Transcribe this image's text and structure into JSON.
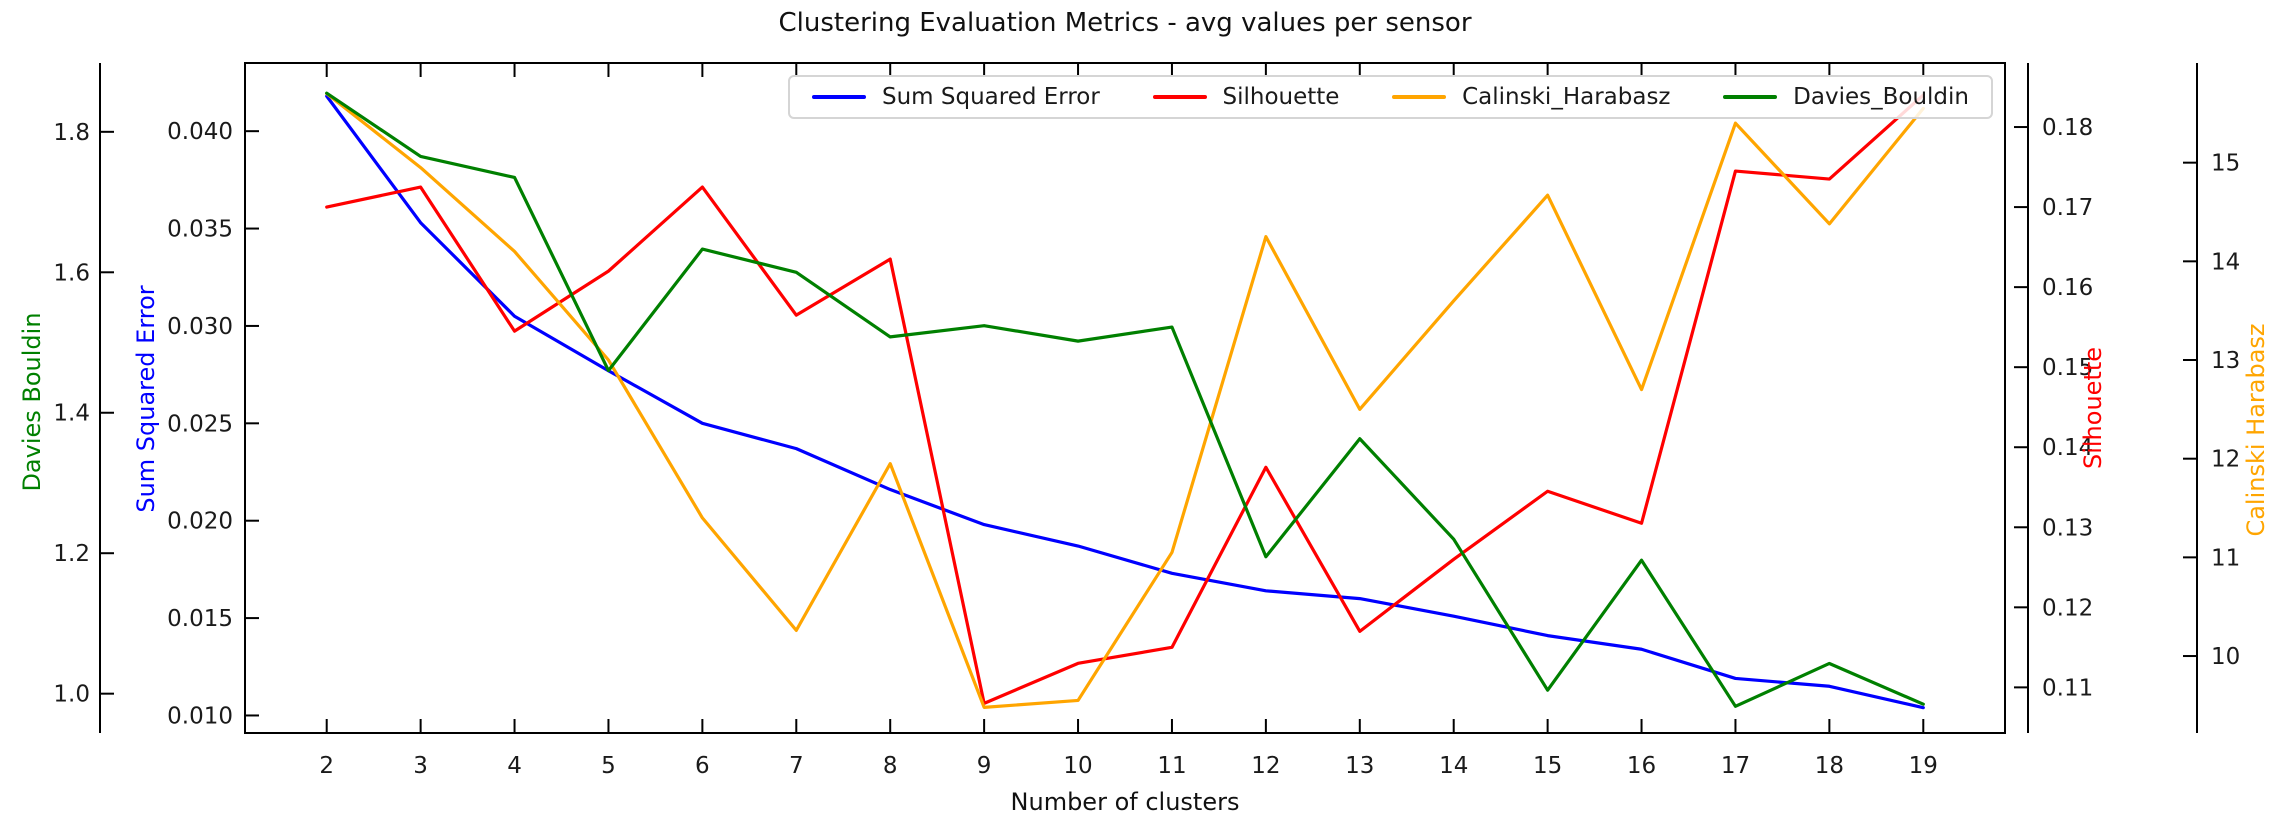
{
  "title": "Clustering Evaluation Metrics - avg values per sensor",
  "xlabel": "Number of clusters",
  "axes": {
    "x": {
      "label": "Number of clusters",
      "tick_labels": [
        "2",
        "3",
        "4",
        "5",
        "6",
        "7",
        "8",
        "9",
        "10",
        "11",
        "12",
        "13",
        "14",
        "15",
        "16",
        "17",
        "18",
        "19"
      ],
      "tick_values": [
        2,
        3,
        4,
        5,
        6,
        7,
        8,
        9,
        10,
        11,
        12,
        13,
        14,
        15,
        16,
        17,
        18,
        19
      ],
      "lim": [
        1.13,
        19.87
      ]
    },
    "davies": {
      "label": "Davies Bouldin",
      "color": "#008000",
      "side": "outer-left",
      "tick_labels": [
        "1.0",
        "1.2",
        "1.4",
        "1.6",
        "1.8"
      ],
      "tick_values": [
        1.0,
        1.2,
        1.4,
        1.6,
        1.8
      ],
      "lim": [
        0.944,
        1.898
      ]
    },
    "sse": {
      "label": "Sum Squared Error",
      "color": "#0000ff",
      "side": "left",
      "tick_labels": [
        "0.010",
        "0.015",
        "0.020",
        "0.025",
        "0.030",
        "0.035",
        "0.040"
      ],
      "tick_values": [
        0.01,
        0.015,
        0.02,
        0.025,
        0.03,
        0.035,
        0.04
      ],
      "lim": [
        0.0091,
        0.0435
      ]
    },
    "silhouette": {
      "label": "Silhouette",
      "color": "#ff0000",
      "side": "right",
      "tick_labels": [
        "0.11",
        "0.12",
        "0.13",
        "0.14",
        "0.15",
        "0.16",
        "0.17",
        "0.18"
      ],
      "tick_values": [
        0.11,
        0.12,
        0.13,
        0.14,
        0.15,
        0.16,
        0.17,
        0.18
      ],
      "lim": [
        0.1043,
        0.188
      ]
    },
    "calinski": {
      "label": "Calinski Harabasz",
      "color": "#ffa500",
      "side": "outer-right",
      "tick_labels": [
        "10",
        "11",
        "12",
        "13",
        "14",
        "15"
      ],
      "tick_values": [
        10,
        11,
        12,
        13,
        14,
        15
      ],
      "lim": [
        9.22,
        16.01
      ]
    }
  },
  "legend": {
    "items": [
      "Sum Squared Error",
      "Silhouette",
      "Calinski_Harabasz",
      "Davies_Bouldin"
    ]
  },
  "chart_data": {
    "type": "line",
    "title": "Clustering Evaluation Metrics - avg values per sensor",
    "xlabel": "Number of clusters",
    "grid": false,
    "legend_position": "upper center",
    "x": [
      2,
      3,
      4,
      5,
      6,
      7,
      8,
      9,
      10,
      11,
      12,
      13,
      14,
      15,
      16,
      17,
      18,
      19
    ],
    "series": [
      {
        "name": "Sum Squared Error",
        "color": "#0000ff",
        "axis": "sse",
        "values": [
          0.0418,
          0.0353,
          0.0305,
          0.0277,
          0.025,
          0.0237,
          0.0216,
          0.0198,
          0.0187,
          0.0173,
          0.0164,
          0.016,
          0.0151,
          0.0141,
          0.0134,
          0.0119,
          0.0115,
          0.0104
        ]
      },
      {
        "name": "Silhouette",
        "color": "#ff0000",
        "axis": "silhouette",
        "values": [
          0.17,
          0.1725,
          0.1545,
          0.162,
          0.1725,
          0.1565,
          0.1635,
          0.108,
          0.113,
          0.115,
          0.1375,
          0.117,
          0.126,
          0.1345,
          0.1305,
          0.1745,
          0.1735,
          0.184
        ]
      },
      {
        "name": "Calinski_Harabasz",
        "color": "#ffa500",
        "axis": "calinski",
        "values": [
          15.7,
          14.95,
          14.1,
          13.0,
          11.4,
          10.26,
          11.95,
          9.48,
          9.55,
          11.05,
          14.25,
          12.5,
          13.6,
          14.67,
          12.7,
          15.4,
          14.38,
          15.55
        ]
      },
      {
        "name": "Davies_Bouldin",
        "color": "#008000",
        "axis": "davies",
        "values": [
          1.855,
          1.765,
          1.735,
          1.46,
          1.633,
          1.6,
          1.508,
          1.524,
          1.502,
          1.522,
          1.195,
          1.363,
          1.22,
          1.005,
          1.19,
          0.982,
          1.043,
          0.985
        ]
      }
    ]
  }
}
